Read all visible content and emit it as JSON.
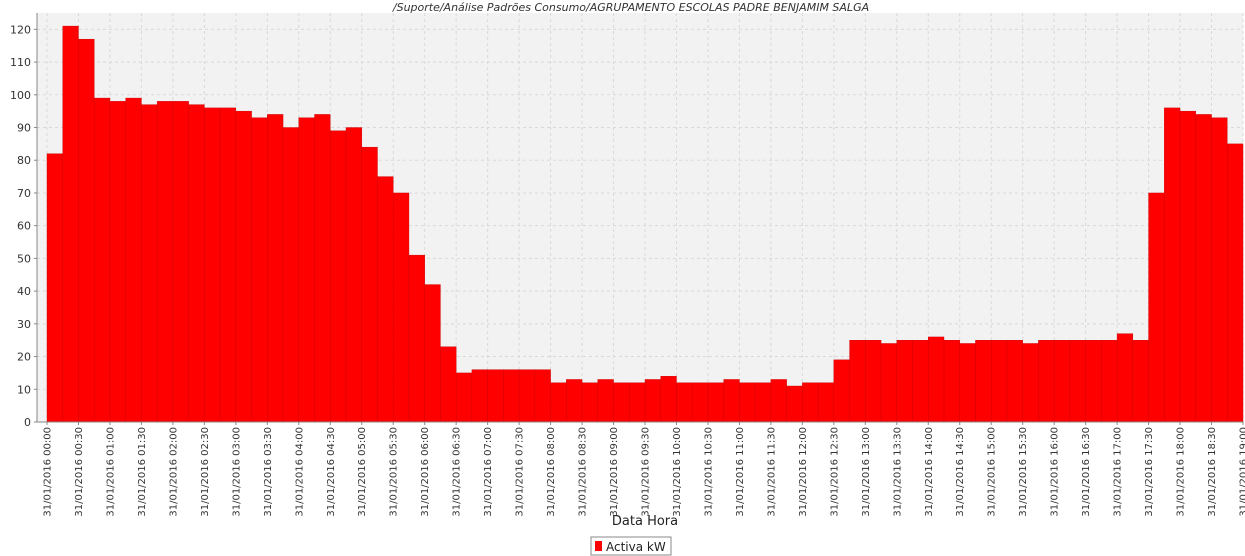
{
  "chart_data": {
    "type": "bar",
    "title": "/Suporte/Análise Padrões Consumo/AGRUPAMENTO ESCOLAS PADRE BENJAMIM SALGA",
    "xlabel": "Data Hora",
    "ylabel": "",
    "ylim": [
      0,
      125
    ],
    "yticks": [
      0,
      10,
      20,
      30,
      40,
      50,
      60,
      70,
      80,
      90,
      100,
      110,
      120
    ],
    "grid": true,
    "legend_position": "bottom-center",
    "bar_color": "#ff0000",
    "series": [
      {
        "name": "Activa  kW",
        "values": [
          82,
          121,
          117,
          99,
          98,
          99,
          97,
          98,
          98,
          97,
          96,
          96,
          95,
          93,
          94,
          90,
          93,
          94,
          89,
          90,
          84,
          75,
          70,
          51,
          42,
          23,
          15,
          16,
          16,
          16,
          16,
          16,
          12,
          13,
          12,
          13,
          12,
          12,
          13,
          14,
          12,
          12,
          12,
          13,
          12,
          12,
          13,
          11,
          12,
          12,
          19,
          25,
          25,
          24,
          25,
          25,
          26,
          25,
          24,
          25,
          25,
          25,
          24,
          25,
          25,
          25,
          25,
          25,
          27,
          25,
          70,
          96,
          95,
          94,
          93,
          85
        ]
      }
    ],
    "tick_labels": [
      "31/01/2016 00:00",
      "31/01/2016 00:30",
      "31/01/2016 01:00",
      "31/01/2016 01:30",
      "31/01/2016 02:00",
      "31/01/2016 02:30",
      "31/01/2016 03:00",
      "31/01/2016 03:30",
      "31/01/2016 04:00",
      "31/01/2016 04:30",
      "31/01/2016 05:00",
      "31/01/2016 05:30",
      "31/01/2016 06:00",
      "31/01/2016 06:30",
      "31/01/2016 07:00",
      "31/01/2016 07:30",
      "31/01/2016 08:00",
      "31/01/2016 08:30",
      "31/01/2016 09:00",
      "31/01/2016 09:30",
      "31/01/2016 10:00",
      "31/01/2016 10:30",
      "31/01/2016 11:00",
      "31/01/2016 11:30",
      "31/01/2016 12:00",
      "31/01/2016 12:30",
      "31/01/2016 13:00",
      "31/01/2016 13:30",
      "31/01/2016 14:00",
      "31/01/2016 14:30",
      "31/01/2016 15:00",
      "31/01/2016 15:30",
      "31/01/2016 16:00",
      "31/01/2016 16:30",
      "31/01/2016 17:00",
      "31/01/2016 17:30",
      "31/01/2016 18:00",
      "31/01/2016 18:30",
      "31/01/2016 19:00"
    ]
  }
}
